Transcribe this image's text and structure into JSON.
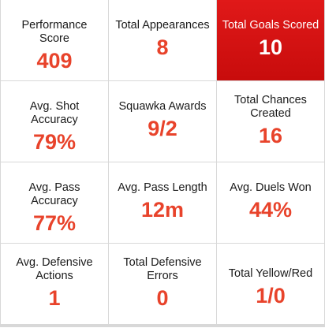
{
  "stats": [
    {
      "label": "Performance Score",
      "value": "409"
    },
    {
      "label": "Total Appearances",
      "value": "8"
    },
    {
      "label": "Total Goals Scored",
      "value": "10"
    },
    {
      "label": "Avg. Shot Accuracy",
      "value": "79%"
    },
    {
      "label": "Squawka Awards",
      "value": "9/2"
    },
    {
      "label": "Total Chances Created",
      "value": "16"
    },
    {
      "label": "Avg. Pass Accuracy",
      "value": "77%"
    },
    {
      "label": "Avg. Pass Length",
      "value": "12m"
    },
    {
      "label": "Avg. Duels Won",
      "value": "44%"
    },
    {
      "label": "Avg. Defensive Actions",
      "value": "1"
    },
    {
      "label": "Total Defensive Errors",
      "value": "0"
    },
    {
      "label": "Total Yellow/Red",
      "value": "1/0"
    }
  ],
  "colors": {
    "highlight_background": "#d41414",
    "value_text": "#e8432b",
    "label_text": "#1a1a1a",
    "grid_lines": "#d8d8d8"
  }
}
